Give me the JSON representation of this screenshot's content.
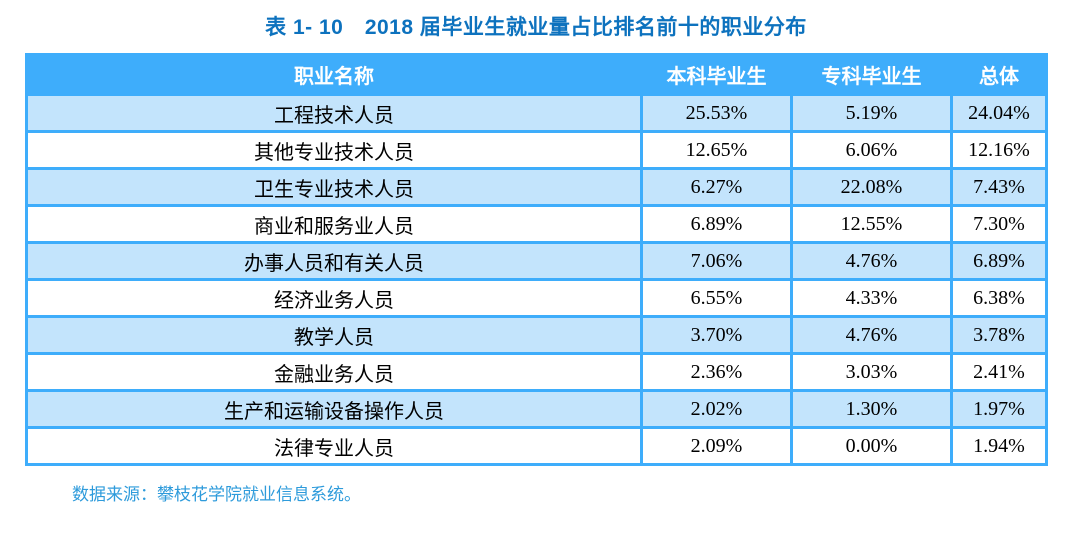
{
  "title": "表 1- 10　2018 届毕业生就业量占比排名前十的职业分布",
  "table": {
    "columns": [
      "职业名称",
      "本科毕业生",
      "专科毕业生",
      "总体"
    ],
    "rows": [
      [
        "工程技术人员",
        "25.53%",
        "5.19%",
        "24.04%"
      ],
      [
        "其他专业技术人员",
        "12.65%",
        "6.06%",
        "12.16%"
      ],
      [
        "卫生专业技术人员",
        "6.27%",
        "22.08%",
        "7.43%"
      ],
      [
        "商业和服务业人员",
        "6.89%",
        "12.55%",
        "7.30%"
      ],
      [
        "办事人员和有关人员",
        "7.06%",
        "4.76%",
        "6.89%"
      ],
      [
        "经济业务人员",
        "6.55%",
        "4.33%",
        "6.38%"
      ],
      [
        "教学人员",
        "3.70%",
        "4.76%",
        "3.78%"
      ],
      [
        "金融业务人员",
        "2.36%",
        "3.03%",
        "2.41%"
      ],
      [
        "生产和运输设备操作人员",
        "2.02%",
        "1.30%",
        "1.97%"
      ],
      [
        "法律专业人员",
        "2.09%",
        "0.00%",
        "1.94%"
      ]
    ]
  },
  "footer": {
    "source": "数据来源：攀枝花学院就业信息系统。"
  },
  "colors": {
    "header_bg": "#3eadfb",
    "row_alt_bg": "#c3e4fc",
    "row_bg": "#ffffff",
    "border": "#3eadfb",
    "title_text": "#0d72be",
    "header_text": "#ffffff",
    "body_text": "#000000",
    "source_text": "#2e9bdb"
  },
  "chart_data": {
    "type": "table",
    "title": "表 1- 10　2018 届毕业生就业量占比排名前十的职业分布",
    "categories": [
      "工程技术人员",
      "其他专业技术人员",
      "卫生专业技术人员",
      "商业和服务业人员",
      "办事人员和有关人员",
      "经济业务人员",
      "教学人员",
      "金融业务人员",
      "生产和运输设备操作人员",
      "法律专业人员"
    ],
    "series": [
      {
        "name": "本科毕业生",
        "values": [
          25.53,
          12.65,
          6.27,
          6.89,
          7.06,
          6.55,
          3.7,
          2.36,
          2.02,
          2.09
        ]
      },
      {
        "name": "专科毕业生",
        "values": [
          5.19,
          6.06,
          22.08,
          12.55,
          4.76,
          4.33,
          4.76,
          3.03,
          1.3,
          0.0
        ]
      },
      {
        "name": "总体",
        "values": [
          24.04,
          12.16,
          7.43,
          7.3,
          6.89,
          6.38,
          3.78,
          2.41,
          1.97,
          1.94
        ]
      }
    ],
    "unit": "%"
  }
}
